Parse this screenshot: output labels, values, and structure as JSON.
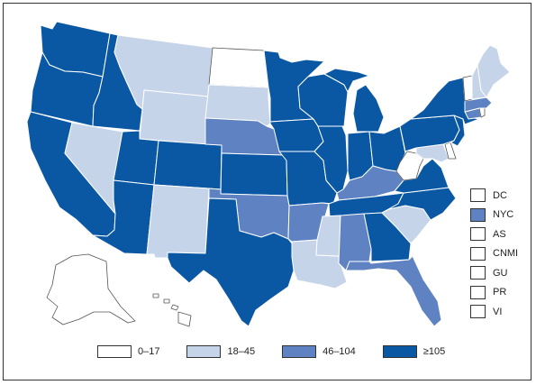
{
  "colors": {
    "lightest": "#ffffff",
    "light": "#c6d4ea",
    "medium": "#5e82c2",
    "dark": "#0a58a4",
    "border": "#333333"
  },
  "legend": [
    {
      "label": "0–17",
      "color": "#ffffff"
    },
    {
      "label": "18–45",
      "color": "#c6d4ea"
    },
    {
      "label": "46–104",
      "color": "#5e82c2"
    },
    {
      "label": "≥105",
      "color": "#0a58a4"
    }
  ],
  "territories": [
    {
      "label": "DC",
      "color": "#ffffff"
    },
    {
      "label": "NYC",
      "color": "#5e82c2"
    },
    {
      "label": "AS",
      "color": "#ffffff"
    },
    {
      "label": "CNMI",
      "color": "#ffffff"
    },
    {
      "label": "GU",
      "color": "#ffffff"
    },
    {
      "label": "PR",
      "color": "#ffffff"
    },
    {
      "label": "VI",
      "color": "#ffffff"
    }
  ],
  "states": {
    "WA": "#0a58a4",
    "OR": "#0a58a4",
    "CA": "#0a58a4",
    "ID": "#0a58a4",
    "NV": "#c6d4ea",
    "MT": "#c6d4ea",
    "WY": "#c6d4ea",
    "UT": "#0a58a4",
    "AZ": "#0a58a4",
    "CO": "#0a58a4",
    "NM": "#c6d4ea",
    "ND": "#ffffff",
    "SD": "#c6d4ea",
    "NE": "#5e82c2",
    "KS": "#0a58a4",
    "OK": "#5e82c2",
    "TX": "#0a58a4",
    "MN": "#0a58a4",
    "IA": "#0a58a4",
    "MO": "#0a58a4",
    "AR": "#5e82c2",
    "LA": "#c6d4ea",
    "WI": "#0a58a4",
    "IL": "#0a58a4",
    "MI": "#0a58a4",
    "IN": "#0a58a4",
    "OH": "#0a58a4",
    "KY": "#5e82c2",
    "TN": "#0a58a4",
    "MS": "#c6d4ea",
    "AL": "#5e82c2",
    "GA": "#0a58a4",
    "FL": "#5e82c2",
    "SC": "#c6d4ea",
    "NC": "#0a58a4",
    "VA": "#0a58a4",
    "WV": "#ffffff",
    "PA": "#0a58a4",
    "NY": "#0a58a4",
    "VT": "#ffffff",
    "NH": "#c6d4ea",
    "ME": "#c6d4ea",
    "MA": "#5e82c2",
    "CT": "#5e82c2",
    "RI": "#ffffff",
    "NJ": "#0a58a4",
    "DE": "#ffffff",
    "MD": "#c6d4ea",
    "AK": "#ffffff",
    "HI": "#ffffff"
  }
}
